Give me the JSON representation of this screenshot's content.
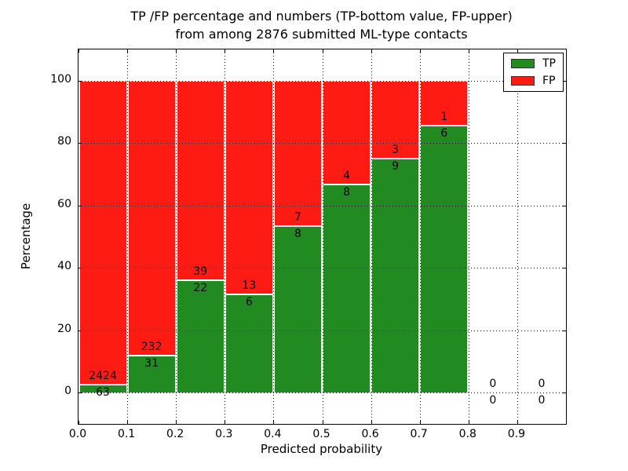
{
  "figure": {
    "title_line1": "TP /FP percentage and numbers (TP-bottom value, FP-upper)",
    "title_line2": "from among 2876 submitted ML-type contacts",
    "xlabel": "Predicted probability",
    "ylabel": "Percentage"
  },
  "legend": {
    "position": "upper right",
    "items": [
      {
        "label": "TP",
        "color": "#218a21"
      },
      {
        "label": "FP",
        "color": "#fe1b14"
      }
    ]
  },
  "chart_data": {
    "type": "bar",
    "stacked": true,
    "normalized_to_percent": true,
    "title": "TP /FP percentage and numbers (TP-bottom value, FP-upper) from among 2876 submitted ML-type contacts",
    "xlabel": "Predicted probability",
    "ylabel": "Percentage",
    "total_contacts": 2876,
    "xlim": [
      0.0,
      1.0
    ],
    "ylim": [
      -10,
      110
    ],
    "x_tick_labels": [
      "0.0",
      "0.1",
      "0.2",
      "0.3",
      "0.4",
      "0.5",
      "0.6",
      "0.7",
      "0.8",
      "0.9"
    ],
    "x_tick_values": [
      0.0,
      0.1,
      0.2,
      0.3,
      0.4,
      0.5,
      0.6,
      0.7,
      0.8,
      0.9
    ],
    "y_tick_values": [
      0,
      20,
      40,
      60,
      80,
      100
    ],
    "grid": "dotted, both axes, drawn above bars",
    "legend_position": "upper right",
    "colors": {
      "tp": "#218a21",
      "fp": "#fe1b14",
      "bar_edge": "#ffffff"
    },
    "series_order_note": "TP green on bottom, FP red stacked above to 100%",
    "bins": [
      {
        "x_range": [
          0.0,
          0.1
        ],
        "tp": 63,
        "fp": 2424,
        "tp_pct": 2.5,
        "fp_pct": 97.5
      },
      {
        "x_range": [
          0.1,
          0.2
        ],
        "tp": 31,
        "fp": 232,
        "tp_pct": 11.8,
        "fp_pct": 88.2
      },
      {
        "x_range": [
          0.2,
          0.3
        ],
        "tp": 22,
        "fp": 39,
        "tp_pct": 36.1,
        "fp_pct": 63.9
      },
      {
        "x_range": [
          0.3,
          0.4
        ],
        "tp": 6,
        "fp": 13,
        "tp_pct": 31.6,
        "fp_pct": 68.4
      },
      {
        "x_range": [
          0.4,
          0.5
        ],
        "tp": 8,
        "fp": 7,
        "tp_pct": 53.3,
        "fp_pct": 46.7
      },
      {
        "x_range": [
          0.5,
          0.6
        ],
        "tp": 8,
        "fp": 4,
        "tp_pct": 66.7,
        "fp_pct": 33.3
      },
      {
        "x_range": [
          0.6,
          0.7
        ],
        "tp": 9,
        "fp": 3,
        "tp_pct": 75.0,
        "fp_pct": 25.0
      },
      {
        "x_range": [
          0.7,
          0.8
        ],
        "tp": 6,
        "fp": 1,
        "tp_pct": 85.7,
        "fp_pct": 14.3
      },
      {
        "x_range": [
          0.8,
          0.9
        ],
        "tp": 0,
        "fp": 0,
        "tp_pct": 0,
        "fp_pct": 0
      },
      {
        "x_range": [
          0.9,
          1.0
        ],
        "tp": 0,
        "fp": 0,
        "tp_pct": 0,
        "fp_pct": 0
      }
    ]
  }
}
